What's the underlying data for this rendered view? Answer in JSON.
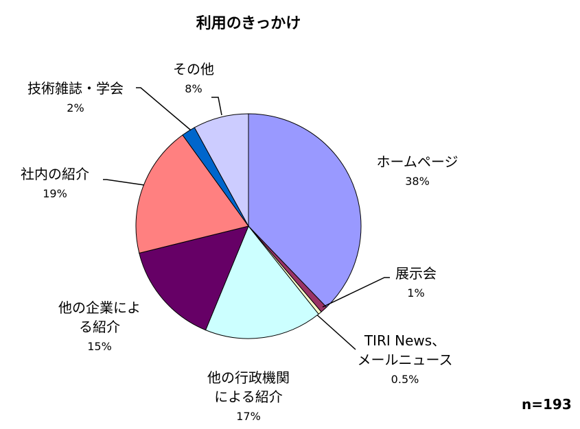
{
  "chart_data": {
    "type": "pie",
    "title": "利用のきっかけ",
    "categories": [
      "ホームページ",
      "展示会",
      "TIRI News、\nメールニュース",
      "他の行政機関\nによる紹介",
      "他の企業によ\nる紹介",
      "社内の紹介",
      "技術雑誌・学会",
      "その他"
    ],
    "values": [
      38,
      1,
      0.5,
      17,
      15,
      19,
      2,
      8
    ],
    "value_labels": [
      "38%",
      "1%",
      "0.5%",
      "17%",
      "15%",
      "19%",
      "2%",
      "8%"
    ],
    "colors": [
      "#9999ff",
      "#993366",
      "#ffffcc",
      "#ccffff",
      "#660066",
      "#ff8080",
      "#0066cc",
      "#ccccff"
    ],
    "annotation": "n=193"
  }
}
